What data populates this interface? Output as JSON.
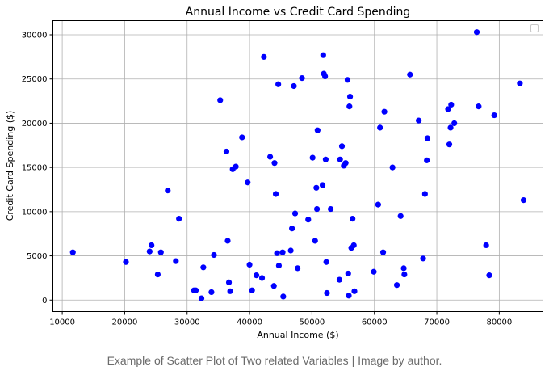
{
  "chart_data": {
    "type": "scatter",
    "title": "Annual Income vs Credit Card Spending",
    "xlabel": "Annual Income ($)",
    "ylabel": "Credit Card Spending ($)",
    "xlim": [
      8500,
      87000
    ],
    "ylim": [
      -1300,
      31600
    ],
    "xticks": [
      10000,
      20000,
      30000,
      40000,
      50000,
      60000,
      70000,
      80000
    ],
    "yticks": [
      0,
      5000,
      10000,
      15000,
      20000,
      25000,
      30000
    ],
    "grid": true,
    "legend": "top-right (empty)",
    "point_color": "#0000ff",
    "points": [
      [
        11700,
        5400
      ],
      [
        20200,
        4300
      ],
      [
        24000,
        5500
      ],
      [
        24300,
        6200
      ],
      [
        25300,
        2900
      ],
      [
        25800,
        5400
      ],
      [
        26900,
        12400
      ],
      [
        28200,
        4400
      ],
      [
        28700,
        9200
      ],
      [
        31100,
        1100
      ],
      [
        31400,
        1100
      ],
      [
        32300,
        200
      ],
      [
        32600,
        3700
      ],
      [
        33900,
        900
      ],
      [
        34300,
        5100
      ],
      [
        35300,
        22600
      ],
      [
        36300,
        16800
      ],
      [
        36500,
        6700
      ],
      [
        36700,
        2000
      ],
      [
        36900,
        1000
      ],
      [
        37300,
        14800
      ],
      [
        37800,
        15100
      ],
      [
        38800,
        18400
      ],
      [
        39700,
        13300
      ],
      [
        40000,
        4000
      ],
      [
        40400,
        1100
      ],
      [
        41100,
        2800
      ],
      [
        42000,
        2500
      ],
      [
        42300,
        27500
      ],
      [
        43300,
        16200
      ],
      [
        43900,
        1600
      ],
      [
        44000,
        15500
      ],
      [
        44200,
        12000
      ],
      [
        44400,
        5300
      ],
      [
        44600,
        24400
      ],
      [
        44700,
        3900
      ],
      [
        45300,
        5400
      ],
      [
        45400,
        400
      ],
      [
        46600,
        5600
      ],
      [
        46800,
        8100
      ],
      [
        47100,
        24200
      ],
      [
        47300,
        9800
      ],
      [
        47700,
        3600
      ],
      [
        48400,
        25100
      ],
      [
        49400,
        9100
      ],
      [
        50100,
        16100
      ],
      [
        50500,
        6700
      ],
      [
        50700,
        12700
      ],
      [
        50800,
        10300
      ],
      [
        50900,
        19200
      ],
      [
        51700,
        13000
      ],
      [
        51800,
        27700
      ],
      [
        51900,
        25600
      ],
      [
        52100,
        25300
      ],
      [
        52200,
        15900
      ],
      [
        52300,
        4300
      ],
      [
        52400,
        800
      ],
      [
        53000,
        10300
      ],
      [
        54400,
        2300
      ],
      [
        54500,
        15900
      ],
      [
        54800,
        17400
      ],
      [
        55100,
        15200
      ],
      [
        55400,
        15500
      ],
      [
        55700,
        24900
      ],
      [
        55800,
        3000
      ],
      [
        55900,
        500
      ],
      [
        56000,
        21900
      ],
      [
        56100,
        23000
      ],
      [
        56300,
        5900
      ],
      [
        56500,
        9200
      ],
      [
        56700,
        6200
      ],
      [
        56800,
        1000
      ],
      [
        59900,
        3200
      ],
      [
        60600,
        10800
      ],
      [
        60900,
        19500
      ],
      [
        61400,
        5400
      ],
      [
        61600,
        21300
      ],
      [
        62900,
        15000
      ],
      [
        63600,
        1700
      ],
      [
        64200,
        9500
      ],
      [
        64700,
        3600
      ],
      [
        64800,
        2900
      ],
      [
        65700,
        25500
      ],
      [
        67100,
        20300
      ],
      [
        67800,
        4700
      ],
      [
        68100,
        12000
      ],
      [
        68400,
        15800
      ],
      [
        68500,
        18300
      ],
      [
        71800,
        21600
      ],
      [
        72000,
        17600
      ],
      [
        72200,
        19500
      ],
      [
        72300,
        22100
      ],
      [
        72800,
        20000
      ],
      [
        76400,
        30300
      ],
      [
        76700,
        21900
      ],
      [
        77900,
        6200
      ],
      [
        78400,
        2800
      ],
      [
        79200,
        20900
      ],
      [
        83300,
        24500
      ],
      [
        83900,
        11300
      ]
    ]
  },
  "caption": "Example of Scatter Plot of Two related Variables | Image by author."
}
